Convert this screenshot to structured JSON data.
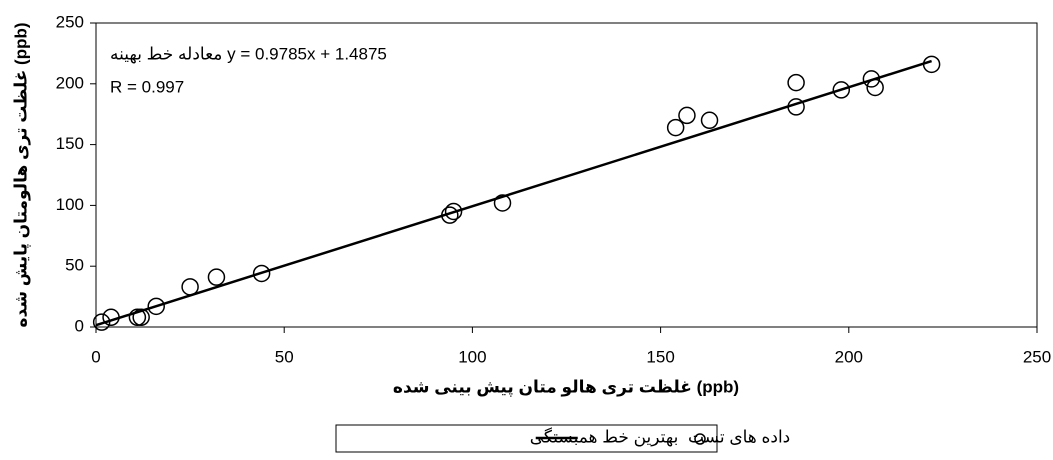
{
  "chart_data": {
    "type": "scatter",
    "xlabel": "غلظت تری هالو متان پیش بینی شده (ppb)",
    "ylabel": "غلظت تری هالومتان پایش شده (ppb)",
    "annotations": [
      "معادله خط بهینه y = 0.9785x + 1.4875",
      "R = 0.997"
    ],
    "xlim": [
      0,
      250
    ],
    "xticks": [
      0,
      50,
      100,
      150,
      200,
      250
    ],
    "ylim": [
      0,
      250
    ],
    "yticks": [
      0,
      50,
      100,
      150,
      200,
      250
    ],
    "series": [
      {
        "name": "داده های تست",
        "color": "#000000",
        "marker": "circle",
        "x": [
          1.5,
          4,
          11,
          12,
          16,
          25,
          32,
          44,
          94,
          95,
          108,
          154,
          157,
          163,
          186,
          186,
          198,
          206,
          207,
          222
        ],
        "values": [
          4,
          8,
          8,
          8,
          17,
          33,
          41,
          44,
          92,
          95,
          102,
          164,
          174,
          170,
          201,
          181,
          195,
          204,
          197,
          216
        ]
      },
      {
        "name": "بهترین خط همبستگی",
        "color": "#000000",
        "marker": "line",
        "x": [
          0,
          222
        ],
        "values": [
          1.4875,
          218.7
        ]
      }
    ]
  }
}
